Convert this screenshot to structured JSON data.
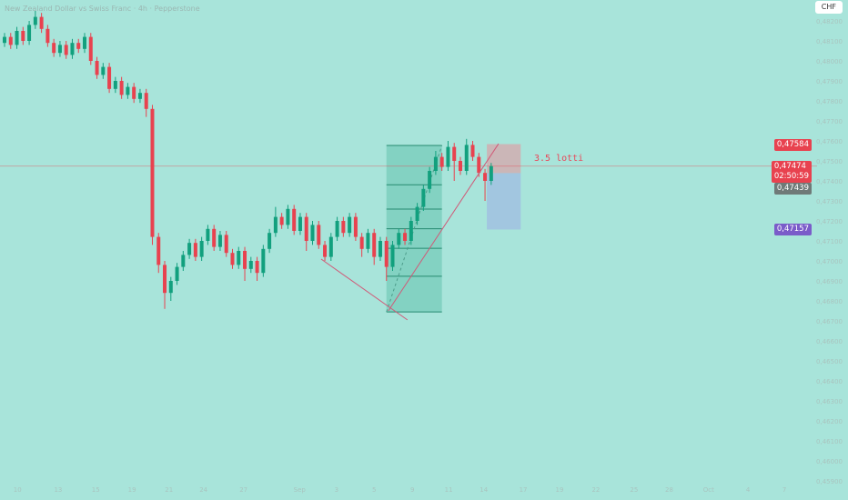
{
  "header": {
    "title": "New Zealand Dollar vs Swiss Franc · 4h · Pepperstone",
    "currency": "CHF"
  },
  "colors": {
    "background": "#a8e4da",
    "up": "#12a07e",
    "down": "#e8424f",
    "last_price": "#e8424f",
    "entry": "#6f7a78",
    "target": "#7a5cc9"
  },
  "annotations": {
    "position_label": "3.5 lotti"
  },
  "badges": {
    "stop": {
      "value": "0,47584",
      "price": 0.47584
    },
    "last": {
      "value": "0,47474",
      "countdown": "02:50:59",
      "price": 0.47474
    },
    "entry": {
      "value": "0,47439",
      "price": 0.47439
    },
    "target": {
      "value": "0,47157",
      "price": 0.47157
    }
  },
  "chart_data": {
    "type": "candlestick",
    "ylim": [
      0.4585,
      0.483
    ],
    "grid": false,
    "y_ticks": [
      "0,48200",
      "0,48100",
      "0,48000",
      "0,47900",
      "0,47800",
      "0,47700",
      "0,47600",
      "0,47500",
      "0,47400",
      "0,47300",
      "0,47200",
      "0,47100",
      "0,47000",
      "0,46900",
      "0,46800",
      "0,46700",
      "0,46600",
      "0,46500",
      "0,46400",
      "0,46300",
      "0,46200",
      "0,46100",
      "0,46000",
      "0,45900"
    ],
    "x_ticks": [
      {
        "label": "10",
        "index": 2.1
      },
      {
        "label": "13",
        "index": 8.7
      },
      {
        "label": "15",
        "index": 14.8
      },
      {
        "label": "19",
        "index": 20.7
      },
      {
        "label": "21",
        "index": 26.7
      },
      {
        "label": "24",
        "index": 32.3
      },
      {
        "label": "27",
        "index": 38.8
      },
      {
        "label": "Sep",
        "index": 47.9
      },
      {
        "label": "3",
        "index": 53.9
      },
      {
        "label": "5",
        "index": 60
      },
      {
        "label": "9",
        "index": 66.2
      },
      {
        "label": "11",
        "index": 72.1
      },
      {
        "label": "14",
        "index": 77.8
      },
      {
        "label": "17",
        "index": 84.2
      },
      {
        "label": "19",
        "index": 90.1
      },
      {
        "label": "22",
        "index": 96
      },
      {
        "label": "25",
        "index": 102.2
      },
      {
        "label": "28",
        "index": 107.9
      },
      {
        "label": "Oct",
        "index": 114.3
      },
      {
        "label": "4",
        "index": 120.7
      },
      {
        "label": "7",
        "index": 126.6
      }
    ],
    "candles_ohlc": [
      [
        0.4809,
        0.4814,
        0.4807,
        0.4812
      ],
      [
        0.4812,
        0.4814,
        0.4806,
        0.4808
      ],
      [
        0.4808,
        0.4817,
        0.4806,
        0.4815
      ],
      [
        0.4815,
        0.4817,
        0.4808,
        0.481
      ],
      [
        0.481,
        0.482,
        0.4808,
        0.4818
      ],
      [
        0.4818,
        0.4825,
        0.4816,
        0.4822
      ],
      [
        0.4822,
        0.4824,
        0.4814,
        0.4816
      ],
      [
        0.4816,
        0.4818,
        0.4807,
        0.4809
      ],
      [
        0.4809,
        0.4811,
        0.4802,
        0.4804
      ],
      [
        0.4804,
        0.481,
        0.4802,
        0.4808
      ],
      [
        0.4808,
        0.481,
        0.4801,
        0.4803
      ],
      [
        0.4803,
        0.4811,
        0.4801,
        0.4809
      ],
      [
        0.4809,
        0.4811,
        0.4804,
        0.4806
      ],
      [
        0.4806,
        0.4814,
        0.4804,
        0.4812
      ],
      [
        0.4812,
        0.4814,
        0.4798,
        0.48
      ],
      [
        0.48,
        0.4802,
        0.4791,
        0.4793
      ],
      [
        0.4793,
        0.4799,
        0.4791,
        0.4797
      ],
      [
        0.4797,
        0.4799,
        0.4784,
        0.4786
      ],
      [
        0.4786,
        0.4792,
        0.4784,
        0.479
      ],
      [
        0.479,
        0.4792,
        0.4781,
        0.4783
      ],
      [
        0.4783,
        0.4789,
        0.4781,
        0.4787
      ],
      [
        0.4787,
        0.4789,
        0.4779,
        0.4781
      ],
      [
        0.4781,
        0.4786,
        0.4779,
        0.4784
      ],
      [
        0.4784,
        0.4786,
        0.4772,
        0.4776
      ],
      [
        0.4776,
        0.4778,
        0.4708,
        0.4712
      ],
      [
        0.4712,
        0.4714,
        0.4694,
        0.4698
      ],
      [
        0.4698,
        0.47,
        0.4676,
        0.4684
      ],
      [
        0.4684,
        0.4692,
        0.468,
        0.469
      ],
      [
        0.469,
        0.4699,
        0.4688,
        0.4697
      ],
      [
        0.4697,
        0.4705,
        0.4695,
        0.4703
      ],
      [
        0.4703,
        0.4711,
        0.4701,
        0.4709
      ],
      [
        0.4709,
        0.4711,
        0.47,
        0.4702
      ],
      [
        0.4702,
        0.4712,
        0.47,
        0.471
      ],
      [
        0.471,
        0.4718,
        0.4708,
        0.4716
      ],
      [
        0.4716,
        0.4718,
        0.4705,
        0.4707
      ],
      [
        0.4707,
        0.4715,
        0.4705,
        0.4713
      ],
      [
        0.4713,
        0.4715,
        0.4702,
        0.4704
      ],
      [
        0.4704,
        0.4706,
        0.4696,
        0.4698
      ],
      [
        0.4698,
        0.4707,
        0.4696,
        0.4705
      ],
      [
        0.4705,
        0.4707,
        0.469,
        0.4696
      ],
      [
        0.4696,
        0.4702,
        0.4694,
        0.47
      ],
      [
        0.47,
        0.4702,
        0.469,
        0.4694
      ],
      [
        0.4694,
        0.4708,
        0.4692,
        0.4706
      ],
      [
        0.4706,
        0.4716,
        0.4704,
        0.4714
      ],
      [
        0.4714,
        0.4727,
        0.4712,
        0.4722
      ],
      [
        0.4722,
        0.4724,
        0.4716,
        0.4718
      ],
      [
        0.4718,
        0.4728,
        0.4716,
        0.4726
      ],
      [
        0.4726,
        0.4728,
        0.4713,
        0.4715
      ],
      [
        0.4715,
        0.4724,
        0.4713,
        0.4722
      ],
      [
        0.4722,
        0.4724,
        0.4705,
        0.471
      ],
      [
        0.471,
        0.472,
        0.4708,
        0.4718
      ],
      [
        0.4718,
        0.472,
        0.4706,
        0.4708
      ],
      [
        0.4708,
        0.471,
        0.47,
        0.4702
      ],
      [
        0.4702,
        0.4714,
        0.47,
        0.4712
      ],
      [
        0.4712,
        0.4722,
        0.471,
        0.472
      ],
      [
        0.472,
        0.4722,
        0.4712,
        0.4714
      ],
      [
        0.4714,
        0.4724,
        0.4712,
        0.4722
      ],
      [
        0.4722,
        0.4724,
        0.471,
        0.4712
      ],
      [
        0.4712,
        0.4714,
        0.4702,
        0.4706
      ],
      [
        0.4706,
        0.4716,
        0.4704,
        0.4714
      ],
      [
        0.4714,
        0.4716,
        0.4698,
        0.4702
      ],
      [
        0.4702,
        0.4712,
        0.47,
        0.471
      ],
      [
        0.471,
        0.4712,
        0.469,
        0.4697
      ],
      [
        0.4697,
        0.471,
        0.4695,
        0.4708
      ],
      [
        0.4708,
        0.4716,
        0.4706,
        0.4714
      ],
      [
        0.4714,
        0.4716,
        0.4708,
        0.471
      ],
      [
        0.471,
        0.4722,
        0.4708,
        0.472
      ],
      [
        0.472,
        0.4729,
        0.4718,
        0.4727
      ],
      [
        0.4727,
        0.4738,
        0.4725,
        0.4736
      ],
      [
        0.4736,
        0.4747,
        0.4734,
        0.4745
      ],
      [
        0.4745,
        0.4755,
        0.4743,
        0.4752
      ],
      [
        0.4752,
        0.4754,
        0.4745,
        0.4747
      ],
      [
        0.4747,
        0.476,
        0.4745,
        0.4757
      ],
      [
        0.4757,
        0.4759,
        0.474,
        0.475
      ],
      [
        0.475,
        0.4752,
        0.4743,
        0.4745
      ],
      [
        0.4745,
        0.4761,
        0.4743,
        0.4758
      ],
      [
        0.4758,
        0.476,
        0.475,
        0.4752
      ],
      [
        0.4752,
        0.4754,
        0.4742,
        0.4744
      ],
      [
        0.4744,
        0.4746,
        0.473,
        0.474
      ],
      [
        0.474,
        0.4749,
        0.4738,
        0.47474
      ]
    ],
    "drawings": {
      "fib_box": {
        "index_range": [
          62,
          71
        ],
        "price_range": [
          0.46745,
          0.47577
        ],
        "levels": [
          0,
          0.236,
          0.382,
          0.5,
          0.618,
          0.786,
          1
        ]
      },
      "trend_lines": [
        {
          "from": [
            51.4,
            0.47009
          ],
          "to": [
            65.4,
            0.46705
          ]
        },
        {
          "from": [
            62.3,
            0.4675
          ],
          "to": [
            80.2,
            0.47586
          ]
        }
      ],
      "short_position": {
        "index_range": [
          78.3,
          83.8
        ],
        "stop": 0.47584,
        "entry": 0.47439,
        "target": 0.47157
      }
    }
  }
}
